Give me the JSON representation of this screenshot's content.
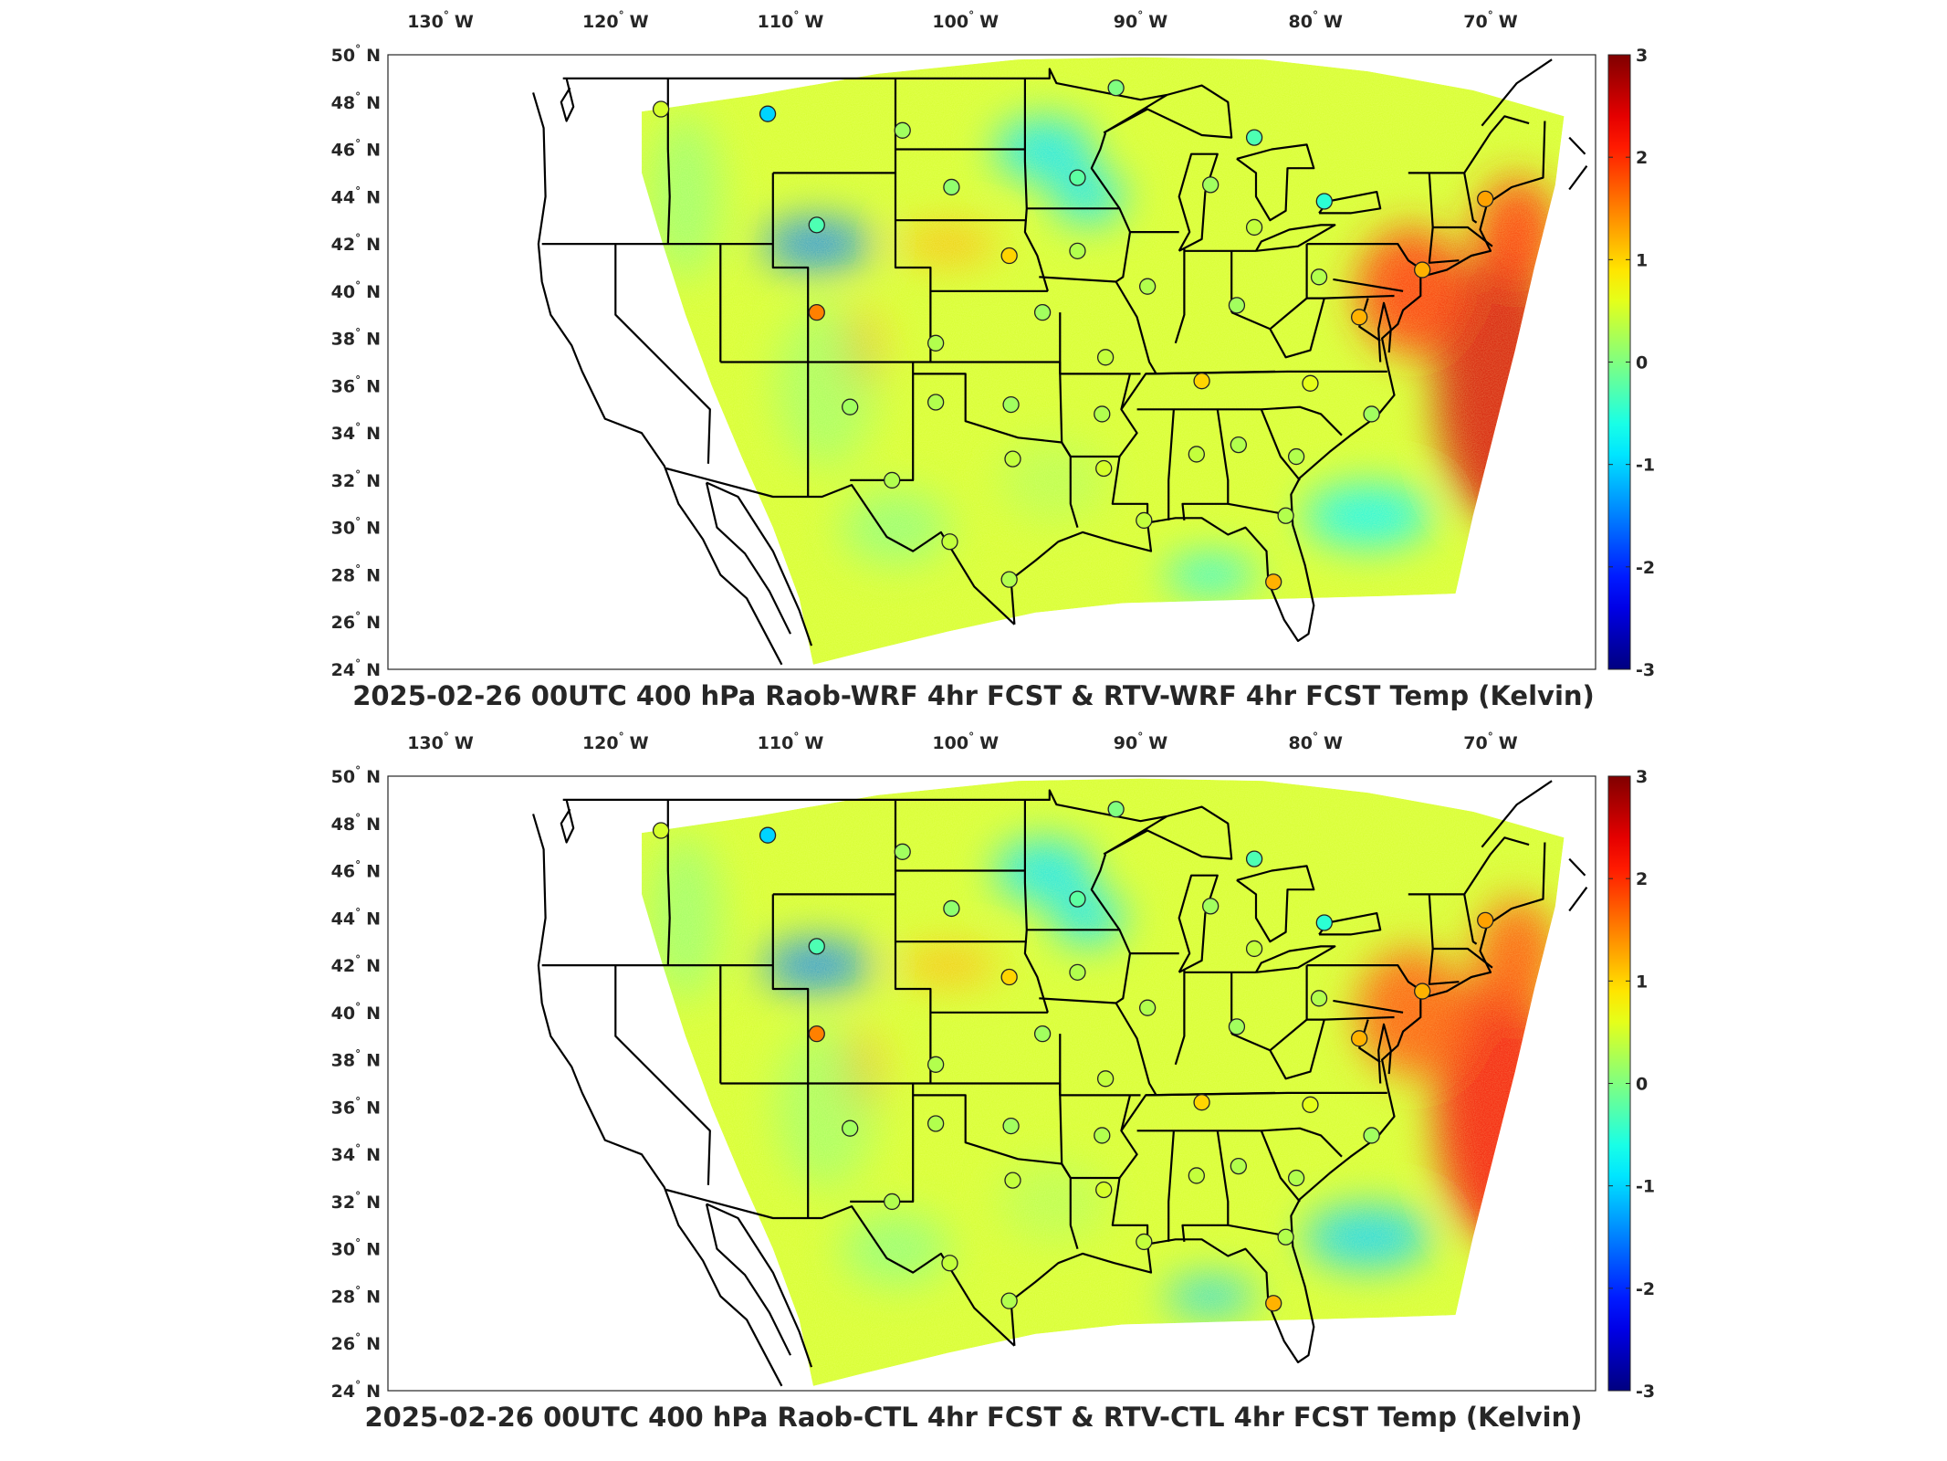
{
  "figure": {
    "longitude_ticks": [
      "130",
      "120",
      "110",
      "100",
      "90",
      "80",
      "70"
    ],
    "longitude_hemisphere": "W",
    "latitude_ticks": [
      "50",
      "48",
      "46",
      "44",
      "42",
      "40",
      "38",
      "36",
      "34",
      "32",
      "30",
      "28",
      "26",
      "24"
    ],
    "latitude_hemisphere": "N",
    "degree_symbol": "°",
    "colormap": "jet",
    "colorbar_ticks": [
      "3",
      "2",
      "1",
      "0",
      "-1",
      "-2",
      "-3"
    ],
    "colorbar_range": [
      -3,
      3
    ]
  },
  "panels": [
    {
      "title": "2025-02-26 00UTC 400 hPa Raob-WRF 4hr FCST & RTV-WRF 4hr FCST Temp (Kelvin)"
    },
    {
      "title": "2025-02-26 00UTC 400 hPa Raob-CTL 4hr FCST & RTV-CTL 4hr FCST Temp (Kelvin)"
    }
  ],
  "chart_data": [
    {
      "type": "heatmap",
      "title": "2025-02-26 00UTC 400 hPa Raob-WRF 4hr FCST & RTV-WRF 4hr FCST Temp (Kelvin)",
      "xlim": [
        -133,
        -64
      ],
      "ylim": [
        24,
        50
      ],
      "colorbar": {
        "min": -3,
        "max": 3,
        "ticks": [
          3,
          2,
          1,
          0,
          -1,
          -2,
          -3
        ]
      },
      "field_features": [
        {
          "region": "offshore east coast",
          "value": 2.5
        },
        {
          "region": "mid-atlantic coast",
          "value": 2.0
        },
        {
          "region": "nebraska",
          "value": 1.2
        },
        {
          "region": "wyoming",
          "value": -1.5
        },
        {
          "region": "minnesota",
          "value": -0.9
        },
        {
          "region": "atlantic offshore south",
          "value": -0.8
        }
      ],
      "raob_stations": [
        {
          "lon": -117.4,
          "lat": 47.7,
          "value": 0.5
        },
        {
          "lon": -111.3,
          "lat": 47.5,
          "value": -1.0
        },
        {
          "lon": -103.6,
          "lat": 46.8,
          "value": 0.2
        },
        {
          "lon": -100.8,
          "lat": 44.4,
          "value": 0.1
        },
        {
          "lon": -93.6,
          "lat": 44.8,
          "value": -0.2
        },
        {
          "lon": -108.5,
          "lat": 42.8,
          "value": -0.3
        },
        {
          "lon": -97.5,
          "lat": 41.5,
          "value": 1.0
        },
        {
          "lon": -89.6,
          "lat": 40.2,
          "value": 0.3
        },
        {
          "lon": -86.0,
          "lat": 44.5,
          "value": 0.2
        },
        {
          "lon": -83.5,
          "lat": 46.5,
          "value": -0.3
        },
        {
          "lon": -83.5,
          "lat": 42.7,
          "value": 0.4
        },
        {
          "lon": -79.5,
          "lat": 43.8,
          "value": -0.5
        },
        {
          "lon": -108.5,
          "lat": 39.1,
          "value": 1.5
        },
        {
          "lon": -101.7,
          "lat": 37.8,
          "value": 0.3
        },
        {
          "lon": -95.6,
          "lat": 39.1,
          "value": 0.2
        },
        {
          "lon": -92.0,
          "lat": 37.2,
          "value": 0.4
        },
        {
          "lon": -86.5,
          "lat": 36.2,
          "value": 1.0
        },
        {
          "lon": -84.5,
          "lat": 39.4,
          "value": 0.2
        },
        {
          "lon": -79.8,
          "lat": 40.6,
          "value": 0.3
        },
        {
          "lon": -77.5,
          "lat": 38.9,
          "value": 1.2
        },
        {
          "lon": -80.3,
          "lat": 36.1,
          "value": 0.6
        },
        {
          "lon": -76.8,
          "lat": 34.8,
          "value": 0.2
        },
        {
          "lon": -106.6,
          "lat": 35.1,
          "value": 0.2
        },
        {
          "lon": -101.7,
          "lat": 35.3,
          "value": 0.3
        },
        {
          "lon": -97.4,
          "lat": 35.2,
          "value": 0.2
        },
        {
          "lon": -92.2,
          "lat": 34.8,
          "value": 0.3
        },
        {
          "lon": -104.2,
          "lat": 32.0,
          "value": 0.3
        },
        {
          "lon": -97.3,
          "lat": 32.9,
          "value": 0.4
        },
        {
          "lon": -92.1,
          "lat": 32.5,
          "value": 0.5
        },
        {
          "lon": -86.8,
          "lat": 33.1,
          "value": 0.4
        },
        {
          "lon": -84.4,
          "lat": 33.5,
          "value": 0.3
        },
        {
          "lon": -81.1,
          "lat": 33.0,
          "value": 0.3
        },
        {
          "lon": -100.9,
          "lat": 29.4,
          "value": 0.4
        },
        {
          "lon": -97.5,
          "lat": 27.8,
          "value": 0.3
        },
        {
          "lon": -89.8,
          "lat": 30.3,
          "value": 0.4
        },
        {
          "lon": -81.7,
          "lat": 30.5,
          "value": 0.3
        },
        {
          "lon": -82.4,
          "lat": 27.7,
          "value": 1.2
        },
        {
          "lon": -70.3,
          "lat": 43.9,
          "value": 1.3
        },
        {
          "lon": -73.9,
          "lat": 40.9,
          "value": 1.2
        },
        {
          "lon": -93.6,
          "lat": 41.7,
          "value": 0.3
        },
        {
          "lon": -91.4,
          "lat": 48.6,
          "value": 0.0
        }
      ]
    },
    {
      "type": "heatmap",
      "title": "2025-02-26 00UTC 400 hPa Raob-CTL 4hr FCST & RTV-CTL 4hr FCST Temp (Kelvin)",
      "xlim": [
        -133,
        -64
      ],
      "ylim": [
        24,
        50
      ],
      "colorbar": {
        "min": -3,
        "max": 3,
        "ticks": [
          3,
          2,
          1,
          0,
          -1,
          -2,
          -3
        ]
      },
      "field_features": [
        {
          "region": "offshore east coast",
          "value": 2.3
        },
        {
          "region": "mid-atlantic coast",
          "value": 1.8
        },
        {
          "region": "nebraska",
          "value": 1.2
        },
        {
          "region": "wyoming",
          "value": -1.5
        },
        {
          "region": "minnesota",
          "value": -0.9
        },
        {
          "region": "atlantic offshore south",
          "value": -1.0
        }
      ],
      "raob_stations": [
        {
          "lon": -117.4,
          "lat": 47.7,
          "value": 0.5
        },
        {
          "lon": -111.3,
          "lat": 47.5,
          "value": -1.0
        },
        {
          "lon": -103.6,
          "lat": 46.8,
          "value": 0.2
        },
        {
          "lon": -100.8,
          "lat": 44.4,
          "value": 0.1
        },
        {
          "lon": -93.6,
          "lat": 44.8,
          "value": -0.2
        },
        {
          "lon": -108.5,
          "lat": 42.8,
          "value": -0.3
        },
        {
          "lon": -97.5,
          "lat": 41.5,
          "value": 1.0
        },
        {
          "lon": -89.6,
          "lat": 40.2,
          "value": 0.3
        },
        {
          "lon": -86.0,
          "lat": 44.5,
          "value": 0.2
        },
        {
          "lon": -83.5,
          "lat": 46.5,
          "value": -0.3
        },
        {
          "lon": -83.5,
          "lat": 42.7,
          "value": 0.4
        },
        {
          "lon": -79.5,
          "lat": 43.8,
          "value": -0.5
        },
        {
          "lon": -108.5,
          "lat": 39.1,
          "value": 1.5
        },
        {
          "lon": -101.7,
          "lat": 37.8,
          "value": 0.3
        },
        {
          "lon": -95.6,
          "lat": 39.1,
          "value": 0.2
        },
        {
          "lon": -92.0,
          "lat": 37.2,
          "value": 0.4
        },
        {
          "lon": -86.5,
          "lat": 36.2,
          "value": 1.0
        },
        {
          "lon": -84.5,
          "lat": 39.4,
          "value": 0.2
        },
        {
          "lon": -79.8,
          "lat": 40.6,
          "value": 0.3
        },
        {
          "lon": -77.5,
          "lat": 38.9,
          "value": 1.2
        },
        {
          "lon": -80.3,
          "lat": 36.1,
          "value": 0.6
        },
        {
          "lon": -76.8,
          "lat": 34.8,
          "value": 0.2
        },
        {
          "lon": -106.6,
          "lat": 35.1,
          "value": 0.2
        },
        {
          "lon": -101.7,
          "lat": 35.3,
          "value": 0.3
        },
        {
          "lon": -97.4,
          "lat": 35.2,
          "value": 0.2
        },
        {
          "lon": -92.2,
          "lat": 34.8,
          "value": 0.3
        },
        {
          "lon": -104.2,
          "lat": 32.0,
          "value": 0.3
        },
        {
          "lon": -97.3,
          "lat": 32.9,
          "value": 0.4
        },
        {
          "lon": -92.1,
          "lat": 32.5,
          "value": 0.5
        },
        {
          "lon": -86.8,
          "lat": 33.1,
          "value": 0.4
        },
        {
          "lon": -84.4,
          "lat": 33.5,
          "value": 0.3
        },
        {
          "lon": -81.1,
          "lat": 33.0,
          "value": 0.3
        },
        {
          "lon": -100.9,
          "lat": 29.4,
          "value": 0.4
        },
        {
          "lon": -97.5,
          "lat": 27.8,
          "value": 0.3
        },
        {
          "lon": -89.8,
          "lat": 30.3,
          "value": 0.4
        },
        {
          "lon": -81.7,
          "lat": 30.5,
          "value": 0.3
        },
        {
          "lon": -82.4,
          "lat": 27.7,
          "value": 1.2
        },
        {
          "lon": -70.3,
          "lat": 43.9,
          "value": 1.3
        },
        {
          "lon": -73.9,
          "lat": 40.9,
          "value": 1.2
        },
        {
          "lon": -93.6,
          "lat": 41.7,
          "value": 0.3
        },
        {
          "lon": -91.4,
          "lat": 48.6,
          "value": 0.0
        }
      ]
    }
  ]
}
